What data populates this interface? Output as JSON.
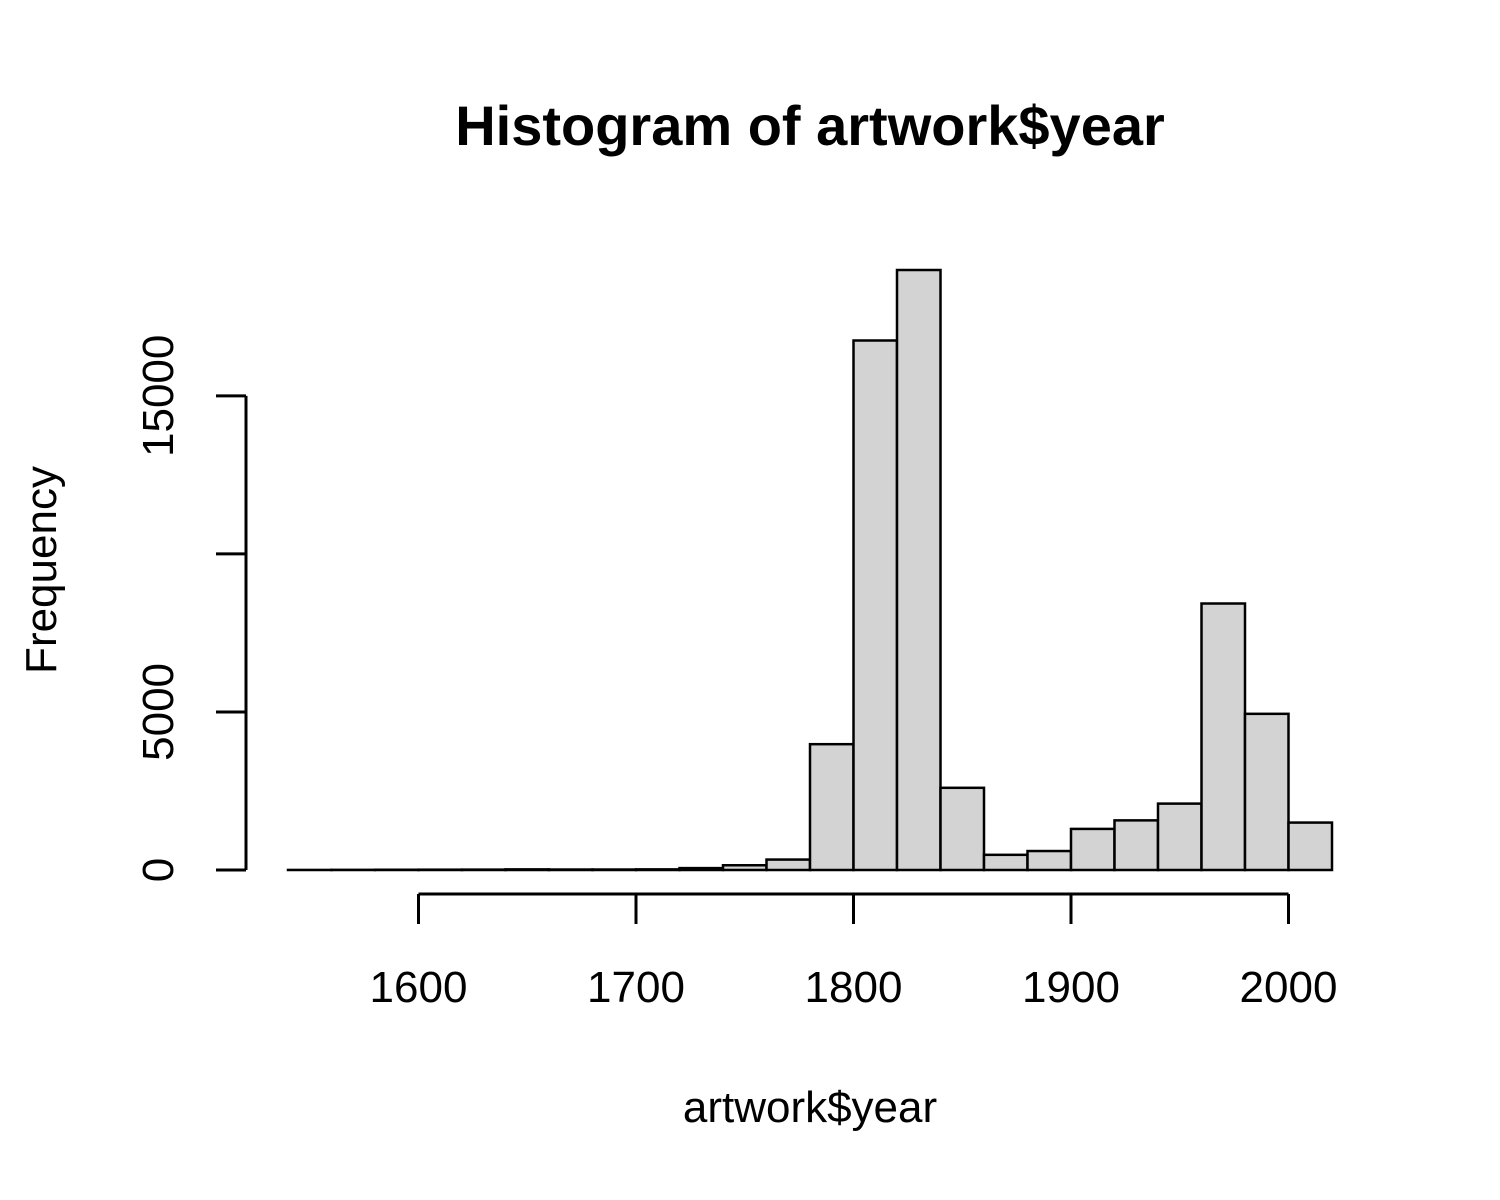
{
  "chart_data": {
    "type": "bar",
    "title": "Histogram of artwork$year",
    "xlabel": "artwork$year",
    "ylabel": "Frequency",
    "bar_color": "#d3d3d3",
    "border_color": "#000000",
    "bin_width": 20,
    "bins": [
      {
        "start": 1540,
        "end": 1560,
        "value": 2
      },
      {
        "start": 1560,
        "end": 1580,
        "value": 5
      },
      {
        "start": 1580,
        "end": 1600,
        "value": 8
      },
      {
        "start": 1600,
        "end": 1620,
        "value": 10
      },
      {
        "start": 1620,
        "end": 1640,
        "value": 12
      },
      {
        "start": 1640,
        "end": 1660,
        "value": 20
      },
      {
        "start": 1660,
        "end": 1680,
        "value": 15
      },
      {
        "start": 1680,
        "end": 1700,
        "value": 15
      },
      {
        "start": 1700,
        "end": 1720,
        "value": 20
      },
      {
        "start": 1720,
        "end": 1740,
        "value": 60
      },
      {
        "start": 1740,
        "end": 1760,
        "value": 150
      },
      {
        "start": 1760,
        "end": 1780,
        "value": 330
      },
      {
        "start": 1780,
        "end": 1800,
        "value": 3980
      },
      {
        "start": 1800,
        "end": 1820,
        "value": 16750
      },
      {
        "start": 1820,
        "end": 1840,
        "value": 18980
      },
      {
        "start": 1840,
        "end": 1860,
        "value": 2600
      },
      {
        "start": 1860,
        "end": 1880,
        "value": 480
      },
      {
        "start": 1880,
        "end": 1900,
        "value": 600
      },
      {
        "start": 1900,
        "end": 1920,
        "value": 1300
      },
      {
        "start": 1920,
        "end": 1940,
        "value": 1570
      },
      {
        "start": 1940,
        "end": 1960,
        "value": 2100
      },
      {
        "start": 1960,
        "end": 1980,
        "value": 8430
      },
      {
        "start": 1980,
        "end": 2000,
        "value": 4940
      },
      {
        "start": 2000,
        "end": 2020,
        "value": 1500
      }
    ],
    "xlim": [
      1540,
      2020
    ],
    "ylim": [
      0,
      18980
    ],
    "xticks": [
      1600,
      1700,
      1800,
      1900,
      2000
    ],
    "xtick_labels": [
      "1600",
      "1700",
      "1800",
      "1900",
      "2000"
    ],
    "yticks": [
      0,
      5000,
      10000,
      15000
    ],
    "ytick_labels": [
      "0",
      "5000",
      "",
      "15000"
    ],
    "grid": false,
    "legend": "none"
  }
}
